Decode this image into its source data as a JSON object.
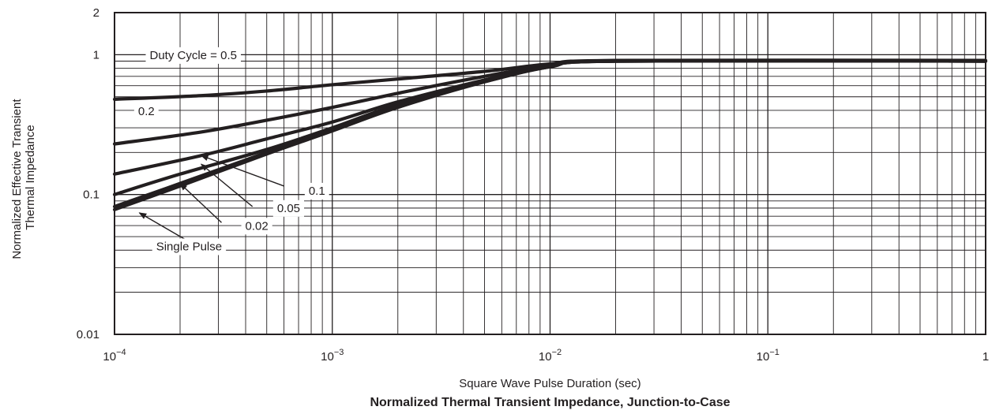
{
  "chart_data": {
    "type": "line",
    "title": "Normalized Thermal Transient Impedance, Junction-to-Case",
    "xlabel": "Square Wave Pulse Duration (sec)",
    "ylabel_lines": [
      "Normalized Effective Transient",
      "Thermal Impedance"
    ],
    "x_scale": "log",
    "y_scale": "log",
    "xlim": [
      0.0001,
      1
    ],
    "ylim": [
      0.01,
      2
    ],
    "grid": true,
    "x_ticks": [
      {
        "value": 0.0001,
        "base": "10",
        "exp": "−4"
      },
      {
        "value": 0.001,
        "base": "10",
        "exp": "−3"
      },
      {
        "value": 0.01,
        "base": "10",
        "exp": "−2"
      },
      {
        "value": 0.1,
        "base": "10",
        "exp": "−1"
      },
      {
        "value": 1,
        "base": "1",
        "exp": ""
      }
    ],
    "y_ticks": [
      {
        "value": 0.01,
        "label": "0.01"
      },
      {
        "value": 0.1,
        "label": "0.1"
      },
      {
        "value": 1,
        "label": "1"
      },
      {
        "value": 2,
        "label": "2"
      }
    ],
    "series": [
      {
        "name": "Duty Cycle = 0.5",
        "x": [
          0.0001,
          0.00025,
          0.0005,
          0.001,
          0.002,
          0.005,
          0.01,
          0.02,
          1
        ],
        "y": [
          0.48,
          0.51,
          0.55,
          0.61,
          0.67,
          0.76,
          0.86,
          0.91,
          0.91
        ]
      },
      {
        "name": "0.2",
        "x": [
          0.0001,
          0.00025,
          0.0005,
          0.001,
          0.002,
          0.005,
          0.01,
          0.02,
          1
        ],
        "y": [
          0.23,
          0.28,
          0.34,
          0.42,
          0.53,
          0.7,
          0.84,
          0.9,
          0.9
        ]
      },
      {
        "name": "0.1",
        "x": [
          0.0001,
          0.00025,
          0.0005,
          0.001,
          0.002,
          0.005,
          0.01,
          0.02,
          1
        ],
        "y": [
          0.14,
          0.19,
          0.25,
          0.33,
          0.46,
          0.66,
          0.83,
          0.9,
          0.9
        ]
      },
      {
        "name": "0.05",
        "x": [
          0.0001,
          0.0002,
          0.0005,
          0.001,
          0.002,
          0.005,
          0.01,
          0.02,
          1
        ],
        "y": [
          0.1,
          0.14,
          0.21,
          0.3,
          0.44,
          0.65,
          0.83,
          0.9,
          0.9
        ]
      },
      {
        "name": "0.02",
        "x": [
          0.0001,
          0.0002,
          0.0005,
          0.001,
          0.002,
          0.005,
          0.01,
          0.02,
          1
        ],
        "y": [
          0.082,
          0.12,
          0.2,
          0.29,
          0.43,
          0.64,
          0.82,
          0.9,
          0.9
        ]
      },
      {
        "name": "Single Pulse",
        "x": [
          0.0001,
          0.0002,
          0.0005,
          0.001,
          0.002,
          0.005,
          0.01,
          0.02,
          1
        ],
        "y": [
          0.078,
          0.115,
          0.195,
          0.285,
          0.42,
          0.64,
          0.82,
          0.9,
          0.9
        ]
      }
    ],
    "annotations": [
      {
        "text": "Duty Cycle = 0.5",
        "series": "Duty Cycle = 0.5",
        "x": 0.00023,
        "y": 0.98,
        "anchor": "middle"
      },
      {
        "text": "0.2",
        "series": "0.2",
        "x": 0.00014,
        "y": 0.39,
        "anchor": "middle"
      },
      {
        "text": "0.1",
        "series": "0.1",
        "x": 0.00085,
        "y": 0.105,
        "anchor": "middle",
        "arrow_from": [
          0.0006,
          0.115
        ],
        "arrow_to": [
          0.00025,
          0.19
        ]
      },
      {
        "text": "0.05",
        "series": "0.05",
        "x": 0.00063,
        "y": 0.079,
        "anchor": "middle",
        "arrow_from": [
          0.00043,
          0.082
        ],
        "arrow_to": [
          0.00025,
          0.165
        ]
      },
      {
        "text": "0.02",
        "series": "0.02",
        "x": 0.00045,
        "y": 0.059,
        "anchor": "middle",
        "arrow_from": [
          0.00031,
          0.063
        ],
        "arrow_to": [
          0.0002,
          0.12
        ]
      },
      {
        "text": "Single Pulse",
        "series": "Single Pulse",
        "x": 0.00022,
        "y": 0.042,
        "anchor": "middle",
        "arrow_from": [
          0.00021,
          0.048
        ],
        "arrow_to": [
          0.00013,
          0.074
        ]
      }
    ]
  }
}
